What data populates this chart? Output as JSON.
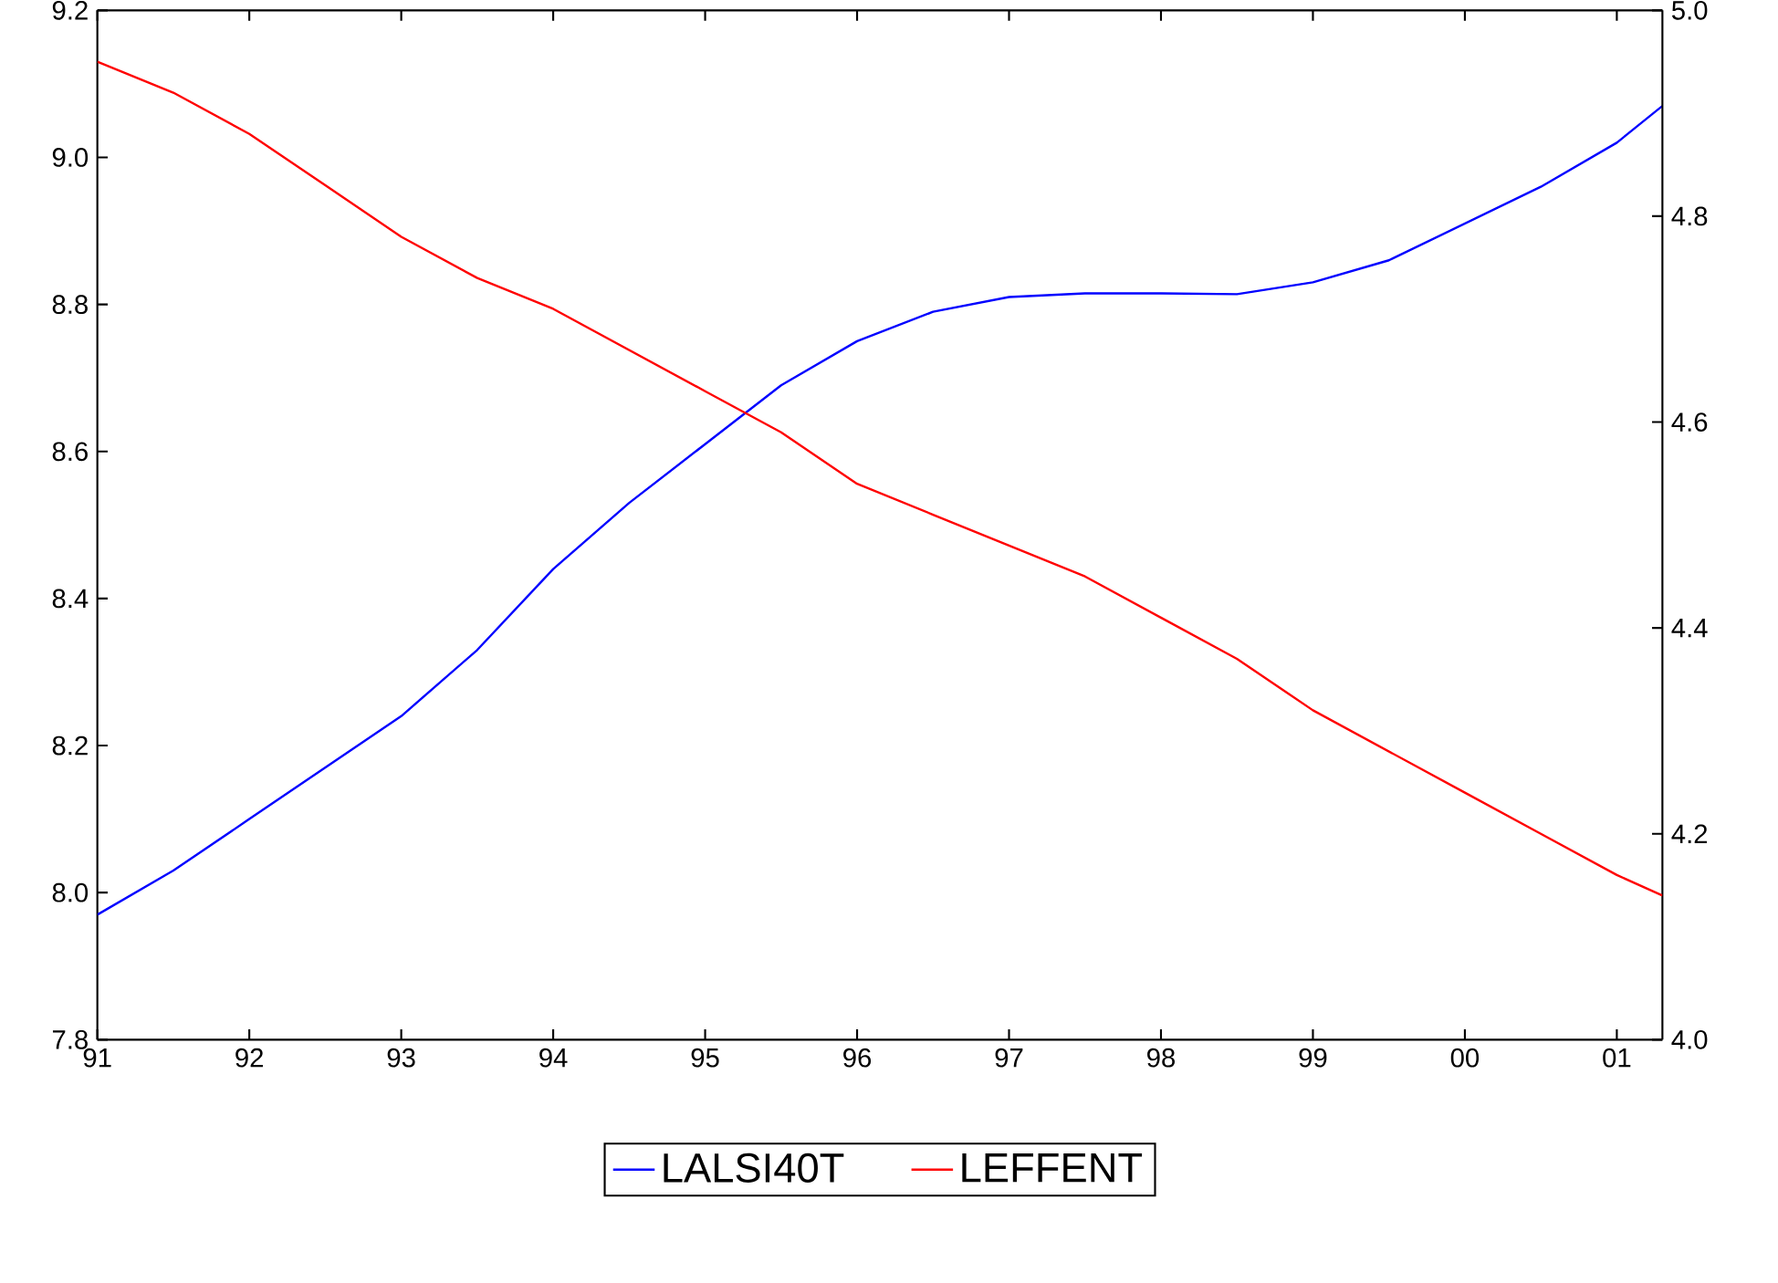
{
  "chart_data": {
    "type": "line",
    "legend": "bottom",
    "x": [
      1991.0,
      1991.5,
      1992.0,
      1992.5,
      1993.0,
      1993.5,
      1994.0,
      1994.5,
      1995.0,
      1995.5,
      1996.0,
      1996.5,
      1997.0,
      1997.5,
      1998.0,
      1998.5,
      1999.0,
      1999.5,
      2000.0,
      2000.5,
      2001.0,
      2001.3
    ],
    "xlim": [
      1991.0,
      2001.3
    ],
    "xticks": [
      {
        "value": 1991,
        "label": "91"
      },
      {
        "value": 1992,
        "label": "92"
      },
      {
        "value": 1993,
        "label": "93"
      },
      {
        "value": 1994,
        "label": "94"
      },
      {
        "value": 1995,
        "label": "95"
      },
      {
        "value": 1996,
        "label": "96"
      },
      {
        "value": 1997,
        "label": "97"
      },
      {
        "value": 1998,
        "label": "98"
      },
      {
        "value": 1999,
        "label": "99"
      },
      {
        "value": 2000,
        "label": "00"
      },
      {
        "value": 2001,
        "label": "01"
      }
    ],
    "ylim": [
      7.8,
      9.2
    ],
    "yticks": [
      {
        "value": 7.8,
        "label": "7.8"
      },
      {
        "value": 8.0,
        "label": "8.0"
      },
      {
        "value": 8.2,
        "label": "8.2"
      },
      {
        "value": 8.4,
        "label": "8.4"
      },
      {
        "value": 8.6,
        "label": "8.6"
      },
      {
        "value": 8.8,
        "label": "8.8"
      },
      {
        "value": 9.0,
        "label": "9.0"
      },
      {
        "value": 9.2,
        "label": "9.2"
      }
    ],
    "y2lim": [
      4.0,
      5.0
    ],
    "y2ticks": [
      {
        "value": 4.0,
        "label": "4.0"
      },
      {
        "value": 4.2,
        "label": "4.2"
      },
      {
        "value": 4.4,
        "label": "4.4"
      },
      {
        "value": 4.6,
        "label": "4.6"
      },
      {
        "value": 4.8,
        "label": "4.8"
      },
      {
        "value": 5.0,
        "label": "5.0"
      }
    ],
    "series": [
      {
        "name": "LALSI40T",
        "color": "#0000ff",
        "values": [
          7.97,
          8.03,
          8.1,
          8.17,
          8.24,
          8.33,
          8.44,
          8.53,
          8.61,
          8.69,
          8.75,
          8.79,
          8.81,
          8.815,
          8.815,
          8.814,
          8.83,
          8.86,
          8.91,
          8.96,
          9.02,
          9.07
        ]
      },
      {
        "name": "LEFFENT",
        "color": "#ff0000",
        "axis": "y2",
        "values": [
          4.95,
          4.92,
          4.88,
          4.83,
          4.78,
          4.74,
          4.71,
          4.67,
          4.63,
          4.59,
          4.54,
          4.51,
          4.48,
          4.45,
          4.41,
          4.37,
          4.32,
          4.28,
          4.24,
          4.2,
          4.16,
          4.14
        ]
      }
    ]
  }
}
